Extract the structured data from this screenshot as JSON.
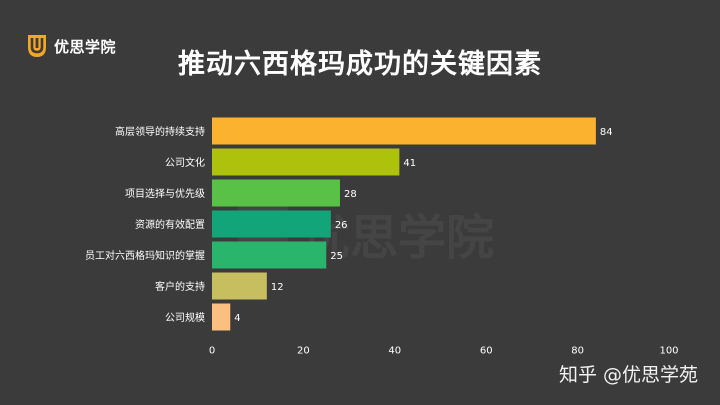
{
  "logo": {
    "text": "优思学院",
    "icon": "u-shield-logo-icon",
    "color": "#f5a623"
  },
  "watermark_bg": {
    "text": "优思学院"
  },
  "footer_watermark": {
    "text": "知乎 @优思学苑"
  },
  "chart_data": {
    "type": "bar",
    "orientation": "horizontal",
    "title": "推动六西格玛成功的关键因素",
    "categories": [
      "高层领导的持续支持",
      "公司文化",
      "项目选择与优先级",
      "资源的有效配置",
      "员工对六西格玛知识的掌握",
      "客户的支持",
      "公司规模"
    ],
    "values": [
      84,
      41,
      28,
      26,
      25,
      12,
      4
    ],
    "colors": [
      "#fbb32f",
      "#aec20c",
      "#59c146",
      "#13a57a",
      "#2ab56d",
      "#c6be5f",
      "#fbc080"
    ],
    "xlim": [
      0,
      100
    ],
    "xticks": [
      0,
      20,
      40,
      60,
      80,
      100
    ],
    "xlabel": "",
    "ylabel": "",
    "grid": false,
    "legend": false
  }
}
